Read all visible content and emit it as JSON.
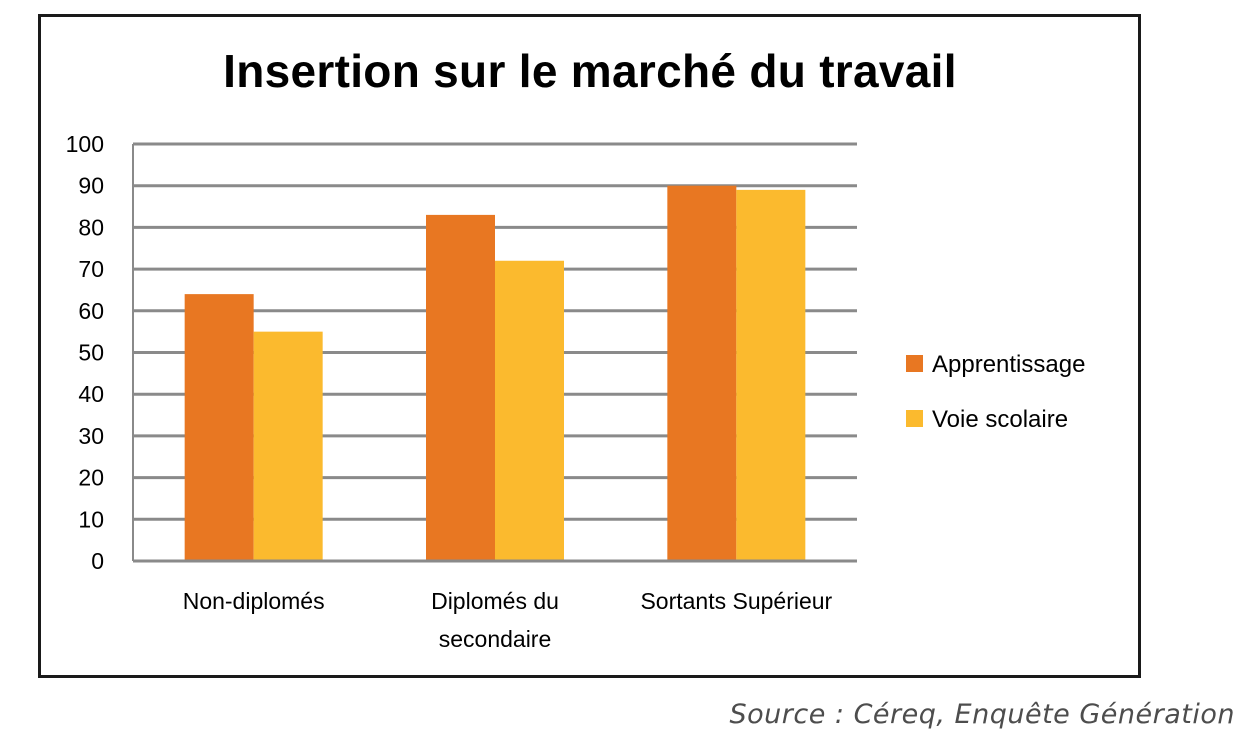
{
  "chart_data": {
    "type": "bar",
    "title": "Insertion sur le marché du travail",
    "categories": [
      [
        "Non-diplomés"
      ],
      [
        "Diplomés du",
        "secondaire"
      ],
      [
        "Sortants Supérieur"
      ]
    ],
    "series": [
      {
        "name": "Apprentissage",
        "values": [
          64,
          83,
          90
        ],
        "color": "#E87722"
      },
      {
        "name": "Voie scolaire",
        "values": [
          55,
          72,
          89
        ],
        "color": "#FBBA2E"
      }
    ],
    "yticks": [
      "0",
      "10",
      "20",
      "30",
      "40",
      "50",
      "60",
      "70",
      "80",
      "90",
      "100"
    ],
    "ylim": [
      0,
      100
    ],
    "grid": true,
    "gridline_color": "#8a8a8a",
    "legend_position": "right"
  },
  "source": "Source : Céreq, Enquête Génération"
}
